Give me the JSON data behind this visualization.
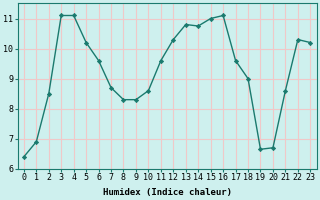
{
  "x": [
    0,
    1,
    2,
    3,
    4,
    5,
    6,
    7,
    8,
    9,
    10,
    11,
    12,
    13,
    14,
    15,
    16,
    17,
    18,
    19,
    20,
    21,
    22,
    23
  ],
  "y": [
    6.4,
    6.9,
    8.5,
    11.1,
    11.1,
    10.2,
    9.6,
    8.7,
    8.3,
    8.3,
    8.6,
    9.6,
    10.3,
    10.8,
    10.75,
    11.0,
    11.1,
    9.6,
    9.0,
    6.65,
    6.7,
    8.6,
    10.3,
    10.2
  ],
  "line_color": "#1a7a6e",
  "marker": "D",
  "marker_size": 2.2,
  "background_color": "#cef0ee",
  "grid_color": "#f0c8c8",
  "xlabel": "Humidex (Indice chaleur)",
  "ylim": [
    6,
    11.5
  ],
  "xlim": [
    -0.5,
    23.5
  ],
  "yticks": [
    6,
    7,
    8,
    9,
    10,
    11
  ],
  "xticks": [
    0,
    1,
    2,
    3,
    4,
    5,
    6,
    7,
    8,
    9,
    10,
    11,
    12,
    13,
    14,
    15,
    16,
    17,
    18,
    19,
    20,
    21,
    22,
    23
  ],
  "xtick_labels": [
    "0",
    "1",
    "2",
    "3",
    "4",
    "5",
    "6",
    "7",
    "8",
    "9",
    "10",
    "11",
    "12",
    "13",
    "14",
    "15",
    "16",
    "17",
    "18",
    "19",
    "20",
    "21",
    "22",
    "23"
  ],
  "xlabel_fontsize": 6.5,
  "tick_fontsize": 6.0,
  "line_width": 1.0
}
